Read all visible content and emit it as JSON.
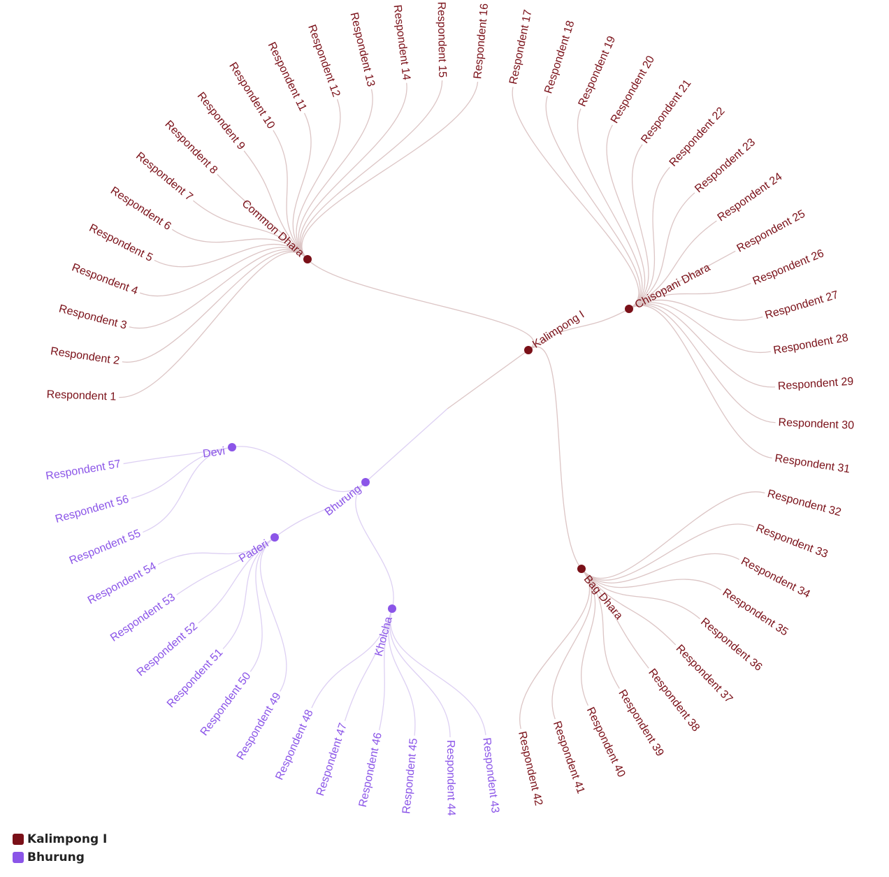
{
  "colors": {
    "kalimpong": "#7a1018",
    "bhurung": "#8b55e8",
    "kalimpong_link": "#dcc5c5",
    "bhurung_link": "#ddd0f3"
  },
  "legend": [
    {
      "label": "Kalimpong I",
      "color": "#7a1018"
    },
    {
      "label": "Bhurung",
      "color": "#8b55e8"
    }
  ],
  "tree": {
    "name": "",
    "children": [
      {
        "name": "Kalimpong I",
        "group": "kalimpong",
        "children": [
          {
            "name": "Common Dhara",
            "group": "kalimpong",
            "leaves": [
              "Respondent 1",
              "Respondent 2",
              "Respondent 3",
              "Respondent 4",
              "Respondent 5",
              "Respondent 6",
              "Respondent 7",
              "Respondent 8",
              "Respondent 9",
              "Respondent 10",
              "Respondent 11",
              "Respondent 12",
              "Respondent 13",
              "Respondent 14",
              "Respondent 15",
              "Respondent 16"
            ]
          },
          {
            "name": "Chisopani Dhara",
            "group": "kalimpong",
            "leaves": [
              "Respondent 17",
              "Respondent 18",
              "Respondent 19",
              "Respondent 20",
              "Respondent 21",
              "Respondent 22",
              "Respondent 23",
              "Respondent 24",
              "Respondent 25",
              "Respondent 26",
              "Respondent 27",
              "Respondent 28",
              "Respondent 29",
              "Respondent 30",
              "Respondent 31"
            ]
          },
          {
            "name": "Bag Dhara",
            "group": "kalimpong",
            "leaves": [
              "Respondent 32",
              "Respondent 33",
              "Respondent 34",
              "Respondent 35",
              "Respondent 36",
              "Respondent 37",
              "Respondent 38",
              "Respondent 39",
              "Respondent 40",
              "Respondent 41",
              "Respondent 42"
            ]
          }
        ]
      },
      {
        "name": "Bhurung",
        "group": "bhurung",
        "children": [
          {
            "name": "Kholcha",
            "group": "bhurung",
            "leaves": [
              "Respondent 43",
              "Respondent 44",
              "Respondent 45",
              "Respondent 46",
              "Respondent 47",
              "Respondent 48"
            ]
          },
          {
            "name": "Paderi",
            "group": "bhurung",
            "leaves": [
              "Respondent 49",
              "Respondent 50",
              "Respondent 51",
              "Respondent 52",
              "Respondent 53",
              "Respondent 54"
            ]
          },
          {
            "name": "Devi",
            "group": "bhurung",
            "leaves": [
              "Respondent 55",
              "Respondent 56",
              "Respondent 57"
            ]
          }
        ]
      }
    ]
  }
}
